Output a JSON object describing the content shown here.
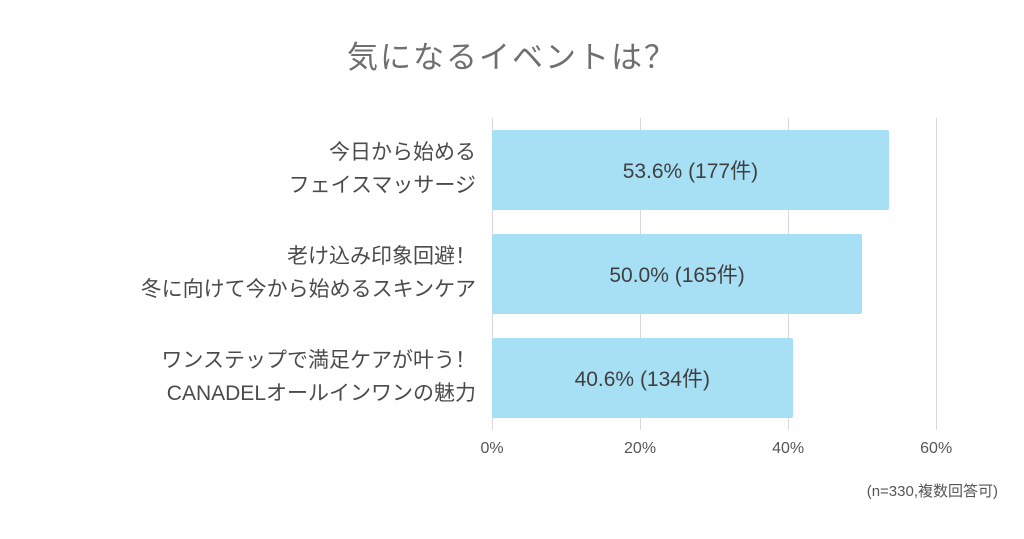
{
  "chart_data": {
    "type": "bar",
    "orientation": "horizontal",
    "title": "気になるイベントは？",
    "categories": [
      "今日から始める\nフェイスマッサージ",
      "老け込み印象回避！\n冬に向けて今から始めるスキンケア",
      "ワンステップで満足ケアが叶う！\nCANADELオールインワンの魅力"
    ],
    "values": [
      53.6,
      50.0,
      40.6
    ],
    "counts": [
      177,
      165,
      134
    ],
    "bar_labels": [
      "53.6% (177件)",
      "50.0% (165件)",
      "40.6% (134件)"
    ],
    "x_ticks": [
      0,
      20,
      40,
      60
    ],
    "x_tick_labels": [
      "0%",
      "20%",
      "40%",
      "60%"
    ],
    "xlim": [
      0,
      67
    ],
    "grid": true,
    "legend": false,
    "bar_color": "#a7e0f5",
    "note": "(n=330,複数回答可)"
  }
}
